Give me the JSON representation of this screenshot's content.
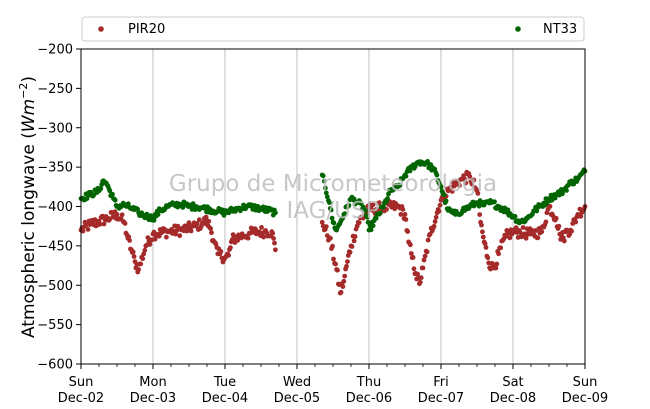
{
  "watermark": {
    "line1": "Grupo de Micrometeorologia",
    "line2": "IAG/USP"
  },
  "chart_data": {
    "type": "scatter",
    "title": "",
    "ylabel": "Atmospheric longwave (Wm⁻²)",
    "ylabel_parts": {
      "main": "Atmospheric longwave (",
      "italic": "Wm",
      "sup": "−2",
      "close": ")"
    },
    "xlabel": "",
    "x_unit": "days since Sun Dec-02 00:00",
    "xlim": [
      "2018-12-02",
      "2018-12-09"
    ],
    "ylim": [
      -600,
      -200
    ],
    "yticks": [
      -600,
      -550,
      -500,
      -450,
      -400,
      -350,
      -300,
      -250,
      -200
    ],
    "ytick_labels": [
      "−600",
      "−550",
      "−500",
      "−450",
      "−400",
      "−350",
      "−300",
      "−250",
      "−200"
    ],
    "xticks": [
      {
        "day": "Sun",
        "date": "Dec-02"
      },
      {
        "day": "Mon",
        "date": "Dec-03"
      },
      {
        "day": "Tue",
        "date": "Dec-04"
      },
      {
        "day": "Wed",
        "date": "Dec-05"
      },
      {
        "day": "Thu",
        "date": "Dec-06"
      },
      {
        "day": "Fri",
        "date": "Dec-07"
      },
      {
        "day": "Sat",
        "date": "Dec-08"
      },
      {
        "day": "Sun",
        "date": "Dec-09"
      }
    ],
    "vertical_grid": true,
    "horizontal_grid": false,
    "legend_position": "top, above plot",
    "gap": [
      "2018-12-04T17:00",
      "2018-12-05T08:00"
    ],
    "series": [
      {
        "name": "PIR20",
        "color": "#a52a2a",
        "x": [
          "2018-12-02T00:00",
          "2018-12-02T03:00",
          "2018-12-02T06:00",
          "2018-12-02T09:00",
          "2018-12-02T12:00",
          "2018-12-02T14:24",
          "2018-12-02T15:36",
          "2018-12-02T16:48",
          "2018-12-02T18:00",
          "2018-12-02T19:12",
          "2018-12-02T21:36",
          "2018-12-03T00:00",
          "2018-12-03T04:48",
          "2018-12-03T09:36",
          "2018-12-03T14:24",
          "2018-12-03T16:48",
          "2018-12-03T18:00",
          "2018-12-03T19:12",
          "2018-12-03T20:24",
          "2018-12-03T21:36",
          "2018-12-04T00:00",
          "2018-12-04T01:12",
          "2018-12-04T02:24",
          "2018-12-04T03:36",
          "2018-12-04T04:48",
          "2018-12-04T06:00",
          "2018-12-04T08:24",
          "2018-12-04T10:48",
          "2018-12-04T13:12",
          "2018-12-04T15:36",
          "2018-12-04T16:48",
          "2018-12-05T08:24",
          "2018-12-05T10:48",
          "2018-12-05T13:12",
          "2018-12-05T14:24",
          "2018-12-05T15:36",
          "2018-12-05T16:48",
          "2018-12-05T18:00",
          "2018-12-05T20:24",
          "2018-12-06T00:00",
          "2018-12-06T04:48",
          "2018-12-06T09:36",
          "2018-12-06T12:00",
          "2018-12-06T13:12",
          "2018-12-06T14:24",
          "2018-12-06T15:36",
          "2018-12-06T16:48",
          "2018-12-06T18:00",
          "2018-12-06T20:24",
          "2018-12-07T00:00",
          "2018-12-07T02:24",
          "2018-12-07T04:48",
          "2018-12-07T07:12",
          "2018-12-07T09:36",
          "2018-12-07T12:00",
          "2018-12-07T13:12",
          "2018-12-07T14:24",
          "2018-12-07T15:36",
          "2018-12-07T16:48",
          "2018-12-07T18:00",
          "2018-12-07T19:12",
          "2018-12-07T21:36",
          "2018-12-08T00:00",
          "2018-12-08T02:24",
          "2018-12-08T06:00",
          "2018-12-08T09:36",
          "2018-12-08T12:00",
          "2018-12-08T14:24",
          "2018-12-08T15:36",
          "2018-12-08T16:48",
          "2018-12-08T18:00",
          "2018-12-08T19:12",
          "2018-12-08T21:36",
          "2018-12-09T00:00"
        ],
        "y": [
          -430,
          -423,
          -419,
          -415,
          -410,
          -420,
          -440,
          -455,
          -470,
          -480,
          -450,
          -435,
          -432,
          -430,
          -425,
          -420,
          -418,
          -428,
          -445,
          -460,
          -465,
          -462,
          -442,
          -440,
          -438,
          -437,
          -434,
          -432,
          -432,
          -432,
          -455,
          -420,
          -440,
          -480,
          -510,
          -495,
          -470,
          -450,
          -420,
          -404,
          -401,
          -400,
          -410,
          -445,
          -465,
          -485,
          -498,
          -478,
          -435,
          -392,
          -380,
          -372,
          -365,
          -362,
          -380,
          -420,
          -445,
          -465,
          -478,
          -475,
          -460,
          -438,
          -432,
          -433,
          -435,
          -432,
          -400,
          -415,
          -435,
          -440,
          -430,
          -430,
          -410,
          -400
        ],
        "spread": 14
      },
      {
        "name": "NT33",
        "color": "#006400",
        "x": [
          "2018-12-02T00:00",
          "2018-12-02T03:00",
          "2018-12-02T06:00",
          "2018-12-02T07:12",
          "2018-12-02T08:24",
          "2018-12-02T09:36",
          "2018-12-02T10:48",
          "2018-12-02T12:00",
          "2018-12-02T14:24",
          "2018-12-02T16:48",
          "2018-12-02T19:12",
          "2018-12-02T21:36",
          "2018-12-03T00:00",
          "2018-12-03T02:24",
          "2018-12-03T04:48",
          "2018-12-03T07:12",
          "2018-12-03T09:36",
          "2018-12-03T12:00",
          "2018-12-03T14:24",
          "2018-12-03T16:48",
          "2018-12-03T19:12",
          "2018-12-03T21:36",
          "2018-12-04T00:00",
          "2018-12-04T02:24",
          "2018-12-04T04:48",
          "2018-12-04T07:12",
          "2018-12-04T09:36",
          "2018-12-04T12:00",
          "2018-12-04T14:24",
          "2018-12-04T16:48",
          "2018-12-05T08:24",
          "2018-12-05T10:48",
          "2018-12-05T12:00",
          "2018-12-05T13:12",
          "2018-12-05T15:36",
          "2018-12-05T18:00",
          "2018-12-05T20:24",
          "2018-12-05T22:48",
          "2018-12-06T00:00",
          "2018-12-06T02:24",
          "2018-12-06T04:48",
          "2018-12-06T07:12",
          "2018-12-06T09:36",
          "2018-12-06T12:00",
          "2018-12-06T14:24",
          "2018-12-06T16:48",
          "2018-12-06T19:12",
          "2018-12-06T21:36",
          "2018-12-07T00:00",
          "2018-12-07T02:24",
          "2018-12-07T04:48",
          "2018-12-07T07:12",
          "2018-12-07T09:36",
          "2018-12-07T12:00",
          "2018-12-07T14:24",
          "2018-12-07T16:48",
          "2018-12-07T19:12",
          "2018-12-07T21:36",
          "2018-12-08T00:00",
          "2018-12-08T02:24",
          "2018-12-08T04:48",
          "2018-12-08T07:12",
          "2018-12-08T09:36",
          "2018-12-08T12:00",
          "2018-12-08T14:24",
          "2018-12-08T16:48",
          "2018-12-08T19:12",
          "2018-12-08T21:36",
          "2018-12-09T00:00"
        ],
        "y": [
          -390,
          -385,
          -380,
          -368,
          -370,
          -380,
          -390,
          -400,
          -398,
          -402,
          -408,
          -412,
          -415,
          -405,
          -400,
          -398,
          -397,
          -400,
          -400,
          -402,
          -404,
          -406,
          -408,
          -405,
          -402,
          -400,
          -401,
          -403,
          -405,
          -408,
          -360,
          -395,
          -420,
          -430,
          -410,
          -390,
          -395,
          -405,
          -430,
          -415,
          -400,
          -380,
          -375,
          -360,
          -350,
          -343,
          -345,
          -353,
          -375,
          -405,
          -410,
          -405,
          -400,
          -395,
          -398,
          -395,
          -400,
          -405,
          -412,
          -420,
          -415,
          -405,
          -398,
          -390,
          -385,
          -380,
          -370,
          -365,
          -355
        ],
        "spread": 8
      }
    ]
  }
}
